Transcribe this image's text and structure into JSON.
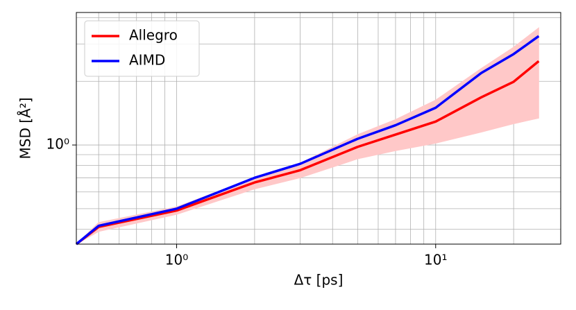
{
  "chart_data": {
    "type": "line",
    "xlabel": "Δτ [ps]",
    "ylabel": "MSD [Å²]",
    "x": [
      0.41,
      0.5,
      1,
      2,
      3,
      5,
      7,
      10,
      15,
      20,
      25
    ],
    "series": [
      {
        "name": "Allegro",
        "color": "#ff0000",
        "values": [
          0.34,
          0.41,
          0.49,
          0.665,
          0.76,
          0.98,
          1.12,
          1.29,
          1.68,
          1.99,
          2.49
        ]
      },
      {
        "name": "AIMD",
        "color": "#0000ff",
        "values": [
          0.34,
          0.415,
          0.5,
          0.7,
          0.815,
          1.07,
          1.24,
          1.5,
          2.19,
          2.69,
          3.27
        ]
      }
    ],
    "band": {
      "color": "#ffc8c8",
      "lower": [
        0.34,
        0.39,
        0.47,
        0.62,
        0.7,
        0.86,
        0.94,
        1.02,
        1.15,
        1.26,
        1.34
      ],
      "upper": [
        0.34,
        0.43,
        0.51,
        0.7,
        0.82,
        1.12,
        1.32,
        1.63,
        2.3,
        2.9,
        3.58
      ]
    },
    "xlog": true,
    "ylog": true,
    "grid": true,
    "legend": "upper left",
    "xlim": [
      0.41,
      30.4
    ],
    "ylim": [
      0.34,
      4.23
    ],
    "xticks": [
      {
        "value": 1,
        "label": "10⁰"
      },
      {
        "value": 10,
        "label": "10¹"
      }
    ],
    "yticks": [
      {
        "value": 1,
        "label": "10⁰"
      }
    ],
    "xminorticks": [
      0.5,
      0.6,
      0.7,
      0.8,
      0.9,
      2,
      3,
      4,
      5,
      6,
      7,
      8,
      9,
      20
    ],
    "yminorticks": [
      0.4,
      0.5,
      0.6,
      0.7,
      0.8,
      0.9,
      2,
      3,
      4
    ]
  }
}
